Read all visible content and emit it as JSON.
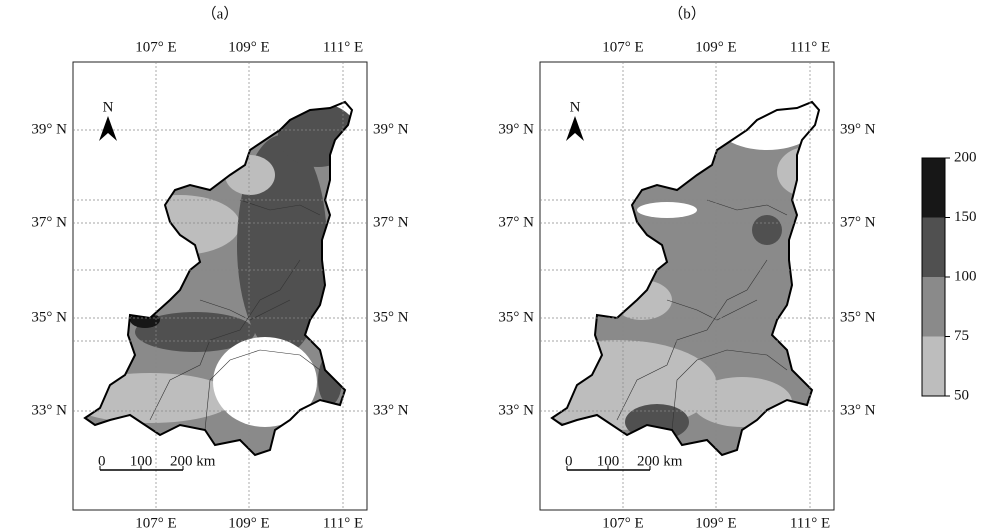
{
  "panels": [
    {
      "label": "（a）"
    },
    {
      "label": "（b）"
    }
  ],
  "longitude_labels": [
    "107° E",
    "109° E",
    "111° E"
  ],
  "latitude_labels": [
    "39° N",
    "37° N",
    "35° N",
    "33° N"
  ],
  "north_label": "N",
  "scale_bar": [
    "0",
    "100",
    "200 km"
  ],
  "colorbar": {
    "ticks": [
      50,
      75,
      100,
      150,
      200
    ],
    "colors": [
      "#bdbdbd",
      "#8a8a8a",
      "#505050",
      "#171717"
    ]
  }
}
